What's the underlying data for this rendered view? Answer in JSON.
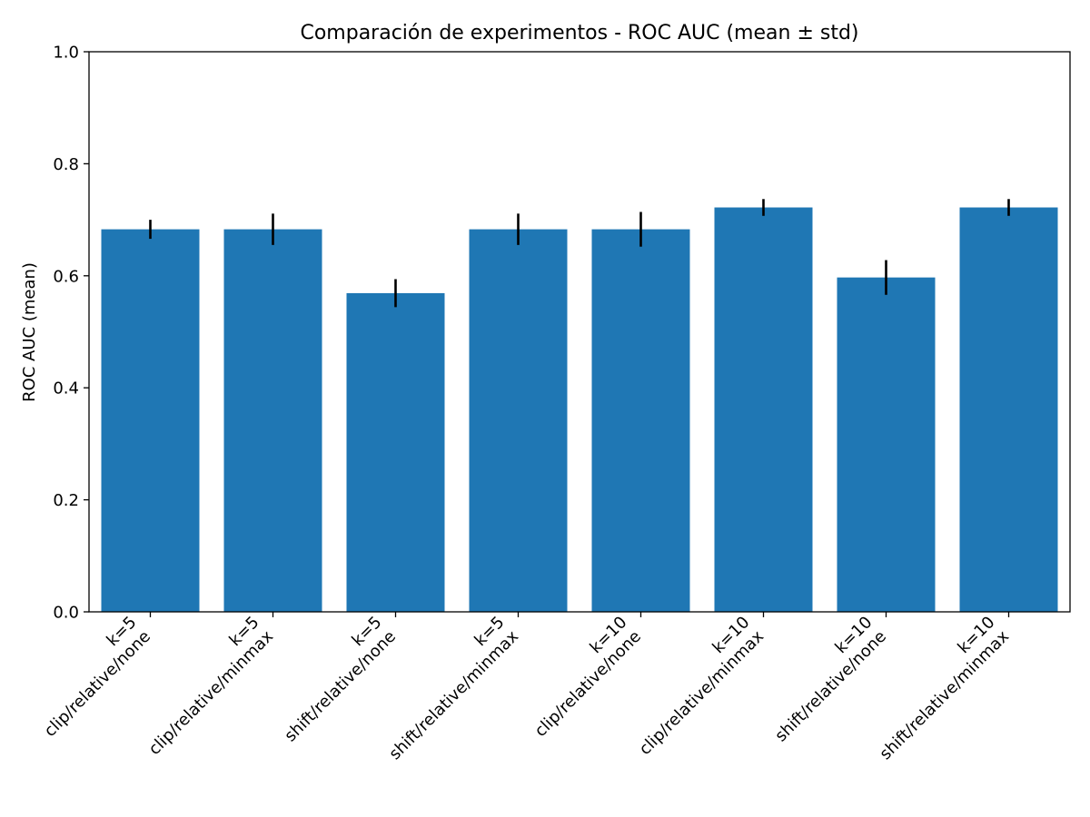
{
  "chart_data": {
    "type": "bar",
    "title": "Comparación de experimentos - ROC AUC (mean ± std)",
    "xlabel": "",
    "ylabel": "ROC AUC (mean)",
    "ylim": [
      0,
      1.0
    ],
    "yticks": [
      "0.0",
      "0.2",
      "0.4",
      "0.6",
      "0.8",
      "1.0"
    ],
    "ytick_values": [
      0.0,
      0.2,
      0.4,
      0.6,
      0.8,
      1.0
    ],
    "categories": [
      [
        "k=5",
        "clip/relative/none"
      ],
      [
        "k=5",
        "clip/relative/minmax"
      ],
      [
        "k=5",
        "shift/relative/none"
      ],
      [
        "k=5",
        "shift/relative/minmax"
      ],
      [
        "k=10",
        "clip/relative/none"
      ],
      [
        "k=10",
        "clip/relative/minmax"
      ],
      [
        "k=10",
        "shift/relative/none"
      ],
      [
        "k=10",
        "shift/relative/minmax"
      ]
    ],
    "values": [
      0.683,
      0.683,
      0.569,
      0.683,
      0.683,
      0.722,
      0.597,
      0.722
    ],
    "errors": [
      0.017,
      0.028,
      0.025,
      0.028,
      0.031,
      0.015,
      0.031,
      0.015
    ],
    "grid": false,
    "bar_color": "#1f77b4",
    "error_color": "#000000"
  }
}
